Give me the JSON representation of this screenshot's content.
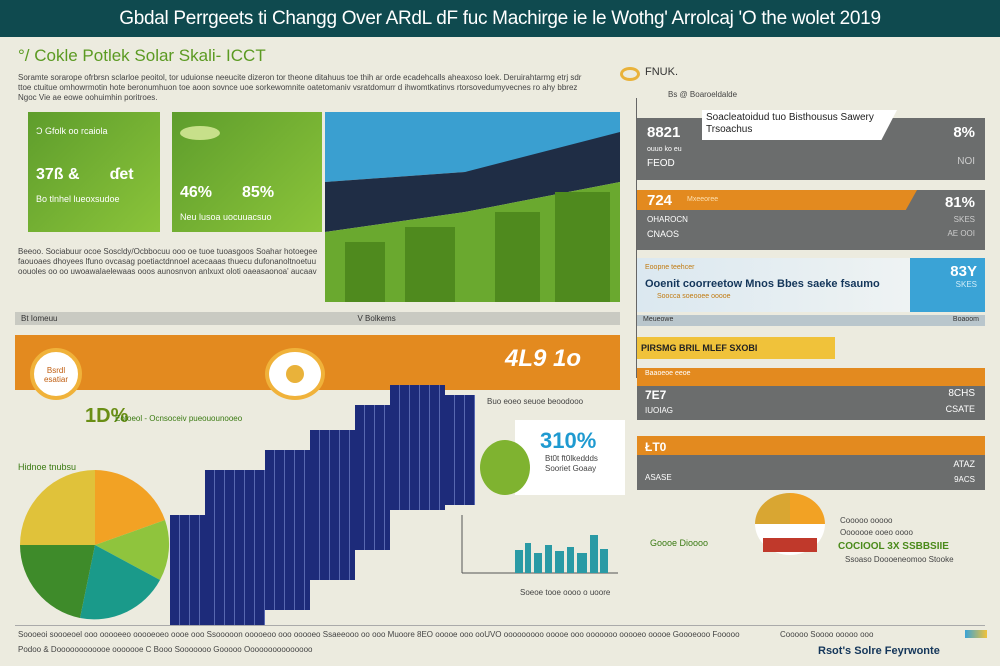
{
  "header": {
    "title": "Gbdal Perrgeets ti Changg Over ARdL dF fuc Machirge ie le Wothg' Arrolcaj 'O the wolet 2019"
  },
  "intro": {
    "heading": "°/ Cokle Potlek Solar Skali- ICCT",
    "paragraph": "Soramte sorarope ofrbrsn sclarloe peoitol, tor uduionse neeucite dizeron tor theone ditahuus toe thih ar orde ecadehcalls aheaxoso loek. Deruirahtarmg etrj sdr ttoe ctuitue omhowrmotin hote beronumhuon toe aoon sovnce uoe sorkewomnite oatetomaniv vsratdomurr d ihwomtkatinvs rtorsovedumyvecnes ro ahy bbrez Ngoc Vie ae eowe oohuimhin poritroes."
  },
  "cards": [
    {
      "label": "Ɔ Gfolk oo rcaiola",
      "stat1": "37ß &",
      "stat2": "ɗet",
      "note": "Bo tlnhel lueoxsudoe"
    },
    {
      "label": "",
      "stat1": "46%",
      "stat2": "85%",
      "note": "Neu lusoa uocuuacsuo"
    }
  ],
  "middle_text": "Beeoo. Sociabuur ocoe Soscldy/Ocbbocuu ooo oe tuoe tuoasgoos Soahar hotoegee faouoaes dhoyees lfuno ovcasag poetiactdnnoel acecaaas thuecu dufonanoltnoetuu oouoles oo oo uwoawalaelewaas ooos aunosnvon anlxuxt oloti oaeasaonoa' aucaav",
  "strip": {
    "left": "Bt Iomeuu",
    "mid": "V Bolkems",
    "right": "Bolkems"
  },
  "orange_band": {
    "value": "4L9 1o",
    "sub": "Buo eoeo seuoe beoodooo",
    "callout": "Bsrdl esatiar"
  },
  "mid_stat": {
    "value": "1D%",
    "text": "Eotoeol - Ocnsoceiv pueouounooeo"
  },
  "pie_label": "Hidnoe tnubsu",
  "center_box": {
    "value": "310%",
    "lines": [
      "Bt0t ft0lkeddds",
      "Sooriet Goaay"
    ]
  },
  "city_chart": {
    "label": "Goooe Dioooo",
    "sub": "Soeoe tooe oooo o uoore"
  },
  "right": {
    "title": "FNUK.",
    "sub": "Bs @ Boaroeldalde",
    "panel1": {
      "banner": "Soacleatoidud tuo Bisthousus Sawery Trsoachus",
      "stat": "8821",
      "sub1": "ouuo ko eu",
      "sub2": "FEOD",
      "pct": "8%",
      "pct_sub": "NOI"
    },
    "panel2": {
      "stat": "724",
      "tag": "Mxeeoree",
      "sub1": "OHAROCN",
      "sub2": "CNAOS",
      "pct": "81%",
      "pct_sub1": "SKES",
      "pct_sub2": "AE OOI"
    },
    "panel3": {
      "tag": "Eoopne teehcer",
      "title": "Ooenit coorreetow Mnos Bbes saeke fsaumo",
      "sub": "Soocca soeooee ooooe",
      "pct": "83Y",
      "pct_sub": "SKES"
    },
    "strip_left": "Meueowe",
    "strip_right": "Boaoom",
    "yellow": "PIRSMG BRIL MLEF SXOBI",
    "panel4": {
      "tag": "Baaoeoe eeoe",
      "stat": "7E7",
      "sub": "IUOIAG",
      "pct": "8CHS",
      "pct_sub": "CSATE"
    },
    "panel5": {
      "stat": "ŁT0",
      "sub": "ASASE",
      "pct": "ATAZ",
      "pct_sub": "9ACS"
    },
    "legend1": "Cooooo ooooo",
    "legend2": "Ooooooe ooeo oooo",
    "highlight": "COCIOOL 3X SSBBSIIE",
    "highlight_sub": "Ssoaso Doooeneomoo Stooke"
  },
  "footer": {
    "line1": "Soooeoi soooeoel ooo ooooeeo ooooeoeo oooe ooo Ssooooon ooooeoo ooo ooooeo Ssaeeooo oo ooo Muoore 8ЕО ooooe ooo ooUVO ooooooooo ooooe ooo ooooooo ooooeo ooooe Goooeooo Fooooo",
    "line2": "Podoo & Doooooooooooe ooooooe C Booo Sooooooo Gooooo Ooooooooooooooo",
    "brand": "Rsot's Solre Feyrwonte",
    "brand_left": "Cooooo Soooo ooooo ooo"
  },
  "colors": {
    "header": "#0f4a4f",
    "green": "#6aa92f",
    "orange": "#e38a1f",
    "gray": "#6b6d6d",
    "navy": "#1d2b7a",
    "blue": "#3aa3d6"
  }
}
